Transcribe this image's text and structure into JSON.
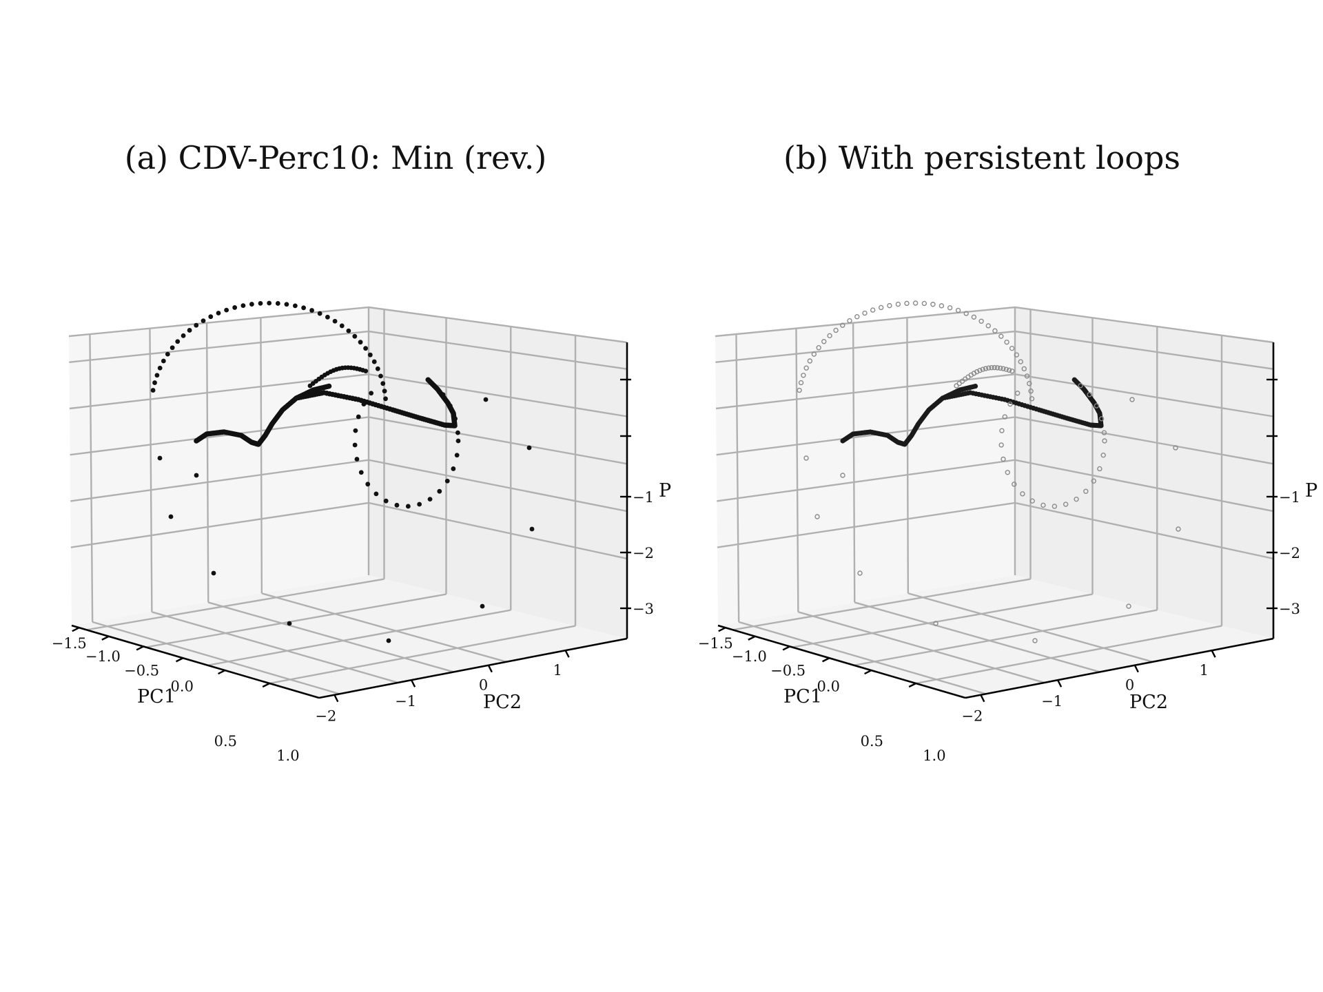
{
  "figure": {
    "panels": [
      {
        "id": "a",
        "title": "(a) CDV-Perc10: Min (rev.)",
        "marker_style": "solid",
        "xlabel": "PC1",
        "ylabel": "PC2",
        "zlabel": "P",
        "x_ticks": [
          "−1.5",
          "−1.0",
          "−0.5",
          "0.0",
          "0.5",
          "1.0"
        ],
        "y_ticks": [
          "−2",
          "−1",
          "0",
          "1"
        ],
        "z_ticks": [
          "−1",
          "−2",
          "−3"
        ]
      },
      {
        "id": "b",
        "title": "(b) With persistent loops",
        "marker_style": "hollow-gray-dense-curve",
        "xlabel": "PC1",
        "ylabel": "PC2",
        "zlabel": "P",
        "x_ticks": [
          "−1.5",
          "−1.0",
          "−0.5",
          "0.0",
          "0.5",
          "1.0"
        ],
        "y_ticks": [
          "−2",
          "−1",
          "0",
          "1"
        ],
        "z_ticks": [
          "−1",
          "−2",
          "−3"
        ]
      }
    ]
  },
  "chart_data": [
    {
      "type": "scatter",
      "projection": "3d",
      "title": "(a) CDV-Perc10: Min (rev.)",
      "xlabel": "PC1",
      "ylabel": "PC2",
      "zlabel": "P",
      "xlim": [
        -1.6,
        1.2
      ],
      "ylim": [
        -2.3,
        1.6
      ],
      "zlim": [
        -3.5,
        1.5
      ],
      "grid": true,
      "marker_color": "#111111",
      "description_values": {
        "main_curve": "dense trajectory from (PC1≈-0.9, PC2≈-0.8, P≈-0.3) bending to (PC1≈0.6, PC2≈0.9, P≈0.4)",
        "loop": "ring of points around PC1≈0.2, PC2≈-0.5, P≈-0.6 with radius ≈1",
        "scattered_outliers_count": 8
      }
    },
    {
      "type": "scatter",
      "projection": "3d",
      "title": "(b) With persistent loops",
      "xlabel": "PC1",
      "ylabel": "PC2",
      "zlabel": "P",
      "xlim": [
        -1.6,
        1.2
      ],
      "ylim": [
        -2.3,
        1.6
      ],
      "zlim": [
        -3.5,
        1.5
      ],
      "grid": true,
      "marker_color": "#7a7a7a",
      "description_values": {
        "main_curve": "same trajectory drawn dark where points are dense",
        "loop": "ring rendered as faint hollow gray markers",
        "scattered_outliers_count": 8
      }
    }
  ]
}
